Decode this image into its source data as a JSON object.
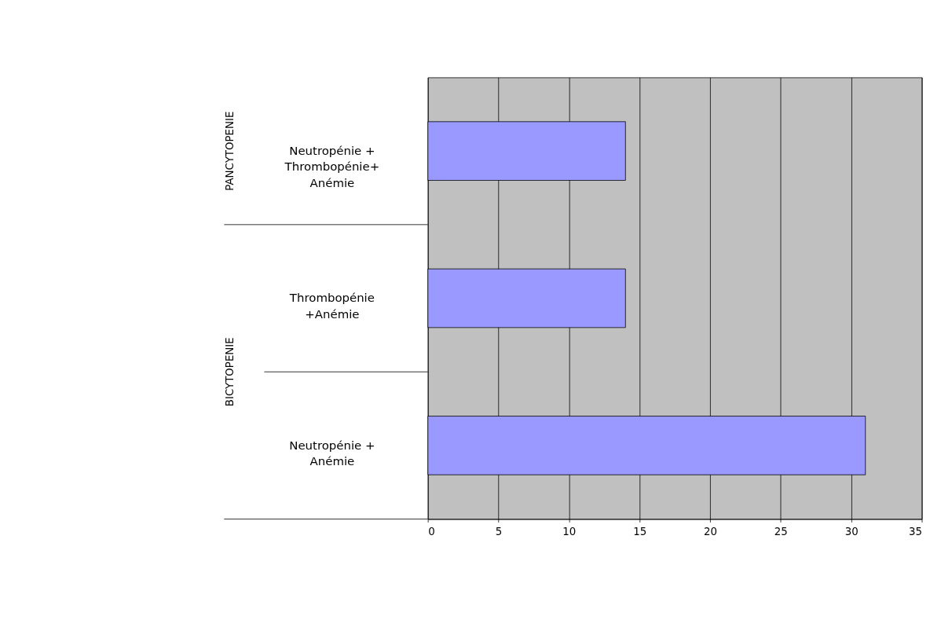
{
  "chart_data": {
    "type": "bar",
    "orientation": "horizontal",
    "categories": [
      "Neutropénie + Thrombopénie+ Anémie",
      "Thrombopénie +Anémie",
      "Neutropénie + Anémie"
    ],
    "values": [
      14,
      14,
      31
    ],
    "color": "#9999ff",
    "xlim": [
      0,
      35
    ],
    "xticks": [
      0,
      5,
      10,
      15,
      20,
      25,
      30,
      35
    ],
    "grid": "x",
    "annotations": [
      "PANCYTOPENIE",
      "BICYTOPENIE"
    ]
  }
}
